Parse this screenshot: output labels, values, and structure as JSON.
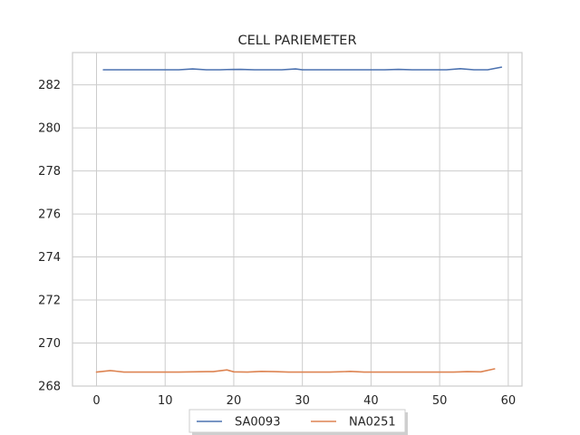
{
  "chart_data": {
    "type": "line",
    "title": "CELL PARIEMETER",
    "xlabel": "",
    "ylabel": "",
    "xlim": [
      -3.5,
      62
    ],
    "ylim": [
      268,
      283.5
    ],
    "xticks": [
      0,
      10,
      20,
      30,
      40,
      50,
      60
    ],
    "yticks": [
      268,
      270,
      272,
      274,
      276,
      278,
      280,
      282
    ],
    "grid": true,
    "legend_position": "bottom-center",
    "series": [
      {
        "name": "SA0093",
        "color": "#4c72b0",
        "x": [
          1,
          3,
          5,
          7,
          9,
          11,
          12,
          14,
          16,
          18,
          19,
          21,
          23,
          25,
          27,
          29,
          30,
          32,
          34,
          36,
          38,
          40,
          42,
          44,
          46,
          48,
          50,
          51,
          53,
          55,
          57,
          59
        ],
        "y": [
          282.7,
          282.7,
          282.7,
          282.7,
          282.7,
          282.7,
          282.7,
          282.74,
          282.7,
          282.7,
          282.71,
          282.72,
          282.7,
          282.7,
          282.7,
          282.74,
          282.7,
          282.7,
          282.7,
          282.7,
          282.7,
          282.7,
          282.7,
          282.72,
          282.7,
          282.7,
          282.7,
          282.7,
          282.75,
          282.7,
          282.7,
          282.82
        ]
      },
      {
        "name": "NA0251",
        "color": "#dd8452",
        "x": [
          0,
          2,
          4,
          6,
          8,
          10,
          12,
          14,
          16,
          17,
          19,
          20,
          22,
          24,
          26,
          28,
          30,
          32,
          34,
          37,
          39,
          40,
          42,
          44,
          46,
          48,
          50,
          52,
          54,
          56,
          58
        ],
        "y": [
          268.65,
          268.72,
          268.65,
          268.65,
          268.65,
          268.65,
          268.65,
          268.66,
          268.67,
          268.67,
          268.75,
          268.66,
          268.65,
          268.68,
          268.67,
          268.65,
          268.65,
          268.65,
          268.65,
          268.68,
          268.65,
          268.65,
          268.65,
          268.65,
          268.65,
          268.65,
          268.65,
          268.65,
          268.67,
          268.66,
          268.8
        ]
      }
    ]
  }
}
